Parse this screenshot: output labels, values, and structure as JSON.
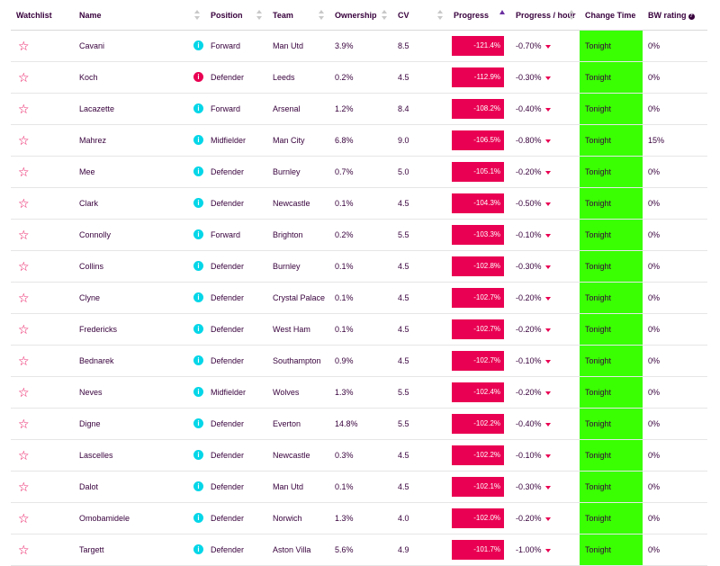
{
  "headers": {
    "watchlist": "Watchlist",
    "name": "Name",
    "position": "Position",
    "team": "Team",
    "ownership": "Ownership",
    "cv": "CV",
    "progress": "Progress",
    "progress_hour": "Progress / hour",
    "change_time": "Change Time",
    "bw_rating": "BW rating",
    "bw_help": "?"
  },
  "icons": {
    "watchlist": "star-outline-icon",
    "info": "info-icon",
    "down": "triangle-down-icon"
  },
  "colors": {
    "accent": "#e90052",
    "info_cyan": "#04d6e8",
    "tonight_green": "#39ff02",
    "text": "#37003c"
  },
  "rows": [
    {
      "name": "Cavani",
      "info": "i",
      "info_color": "cyan",
      "position": "Forward",
      "team": "Man Utd",
      "ownership": "3.9%",
      "cv": "8.5",
      "progress": "-121.4%",
      "progress_hour": "-0.70%",
      "change_time": "Tonight",
      "bw_rating": "0%"
    },
    {
      "name": "Koch",
      "info": "i",
      "info_color": "red",
      "position": "Defender",
      "team": "Leeds",
      "ownership": "0.2%",
      "cv": "4.5",
      "progress": "-112.9%",
      "progress_hour": "-0.30%",
      "change_time": "Tonight",
      "bw_rating": "0%"
    },
    {
      "name": "Lacazette",
      "info": "i",
      "info_color": "cyan",
      "position": "Forward",
      "team": "Arsenal",
      "ownership": "1.2%",
      "cv": "8.4",
      "progress": "-108.2%",
      "progress_hour": "-0.40%",
      "change_time": "Tonight",
      "bw_rating": "0%"
    },
    {
      "name": "Mahrez",
      "info": "i",
      "info_color": "cyan",
      "position": "Midfielder",
      "team": "Man City",
      "ownership": "6.8%",
      "cv": "9.0",
      "progress": "-106.5%",
      "progress_hour": "-0.80%",
      "change_time": "Tonight",
      "bw_rating": "15%"
    },
    {
      "name": "Mee",
      "info": "i",
      "info_color": "cyan",
      "position": "Defender",
      "team": "Burnley",
      "ownership": "0.7%",
      "cv": "5.0",
      "progress": "-105.1%",
      "progress_hour": "-0.20%",
      "change_time": "Tonight",
      "bw_rating": "0%"
    },
    {
      "name": "Clark",
      "info": "i",
      "info_color": "cyan",
      "position": "Defender",
      "team": "Newcastle",
      "ownership": "0.1%",
      "cv": "4.5",
      "progress": "-104.3%",
      "progress_hour": "-0.50%",
      "change_time": "Tonight",
      "bw_rating": "0%"
    },
    {
      "name": "Connolly",
      "info": "i",
      "info_color": "cyan",
      "position": "Forward",
      "team": "Brighton",
      "ownership": "0.2%",
      "cv": "5.5",
      "progress": "-103.3%",
      "progress_hour": "-0.10%",
      "change_time": "Tonight",
      "bw_rating": "0%"
    },
    {
      "name": "Collins",
      "info": "i",
      "info_color": "cyan",
      "position": "Defender",
      "team": "Burnley",
      "ownership": "0.1%",
      "cv": "4.5",
      "progress": "-102.8%",
      "progress_hour": "-0.30%",
      "change_time": "Tonight",
      "bw_rating": "0%"
    },
    {
      "name": "Clyne",
      "info": "i",
      "info_color": "cyan",
      "position": "Defender",
      "team": "Crystal Palace",
      "ownership": "0.1%",
      "cv": "4.5",
      "progress": "-102.7%",
      "progress_hour": "-0.20%",
      "change_time": "Tonight",
      "bw_rating": "0%"
    },
    {
      "name": "Fredericks",
      "info": "i",
      "info_color": "cyan",
      "position": "Defender",
      "team": "West Ham",
      "ownership": "0.1%",
      "cv": "4.5",
      "progress": "-102.7%",
      "progress_hour": "-0.20%",
      "change_time": "Tonight",
      "bw_rating": "0%"
    },
    {
      "name": "Bednarek",
      "info": "i",
      "info_color": "cyan",
      "position": "Defender",
      "team": "Southampton",
      "ownership": "0.9%",
      "cv": "4.5",
      "progress": "-102.7%",
      "progress_hour": "-0.10%",
      "change_time": "Tonight",
      "bw_rating": "0%"
    },
    {
      "name": "Neves",
      "info": "i",
      "info_color": "cyan",
      "position": "Midfielder",
      "team": "Wolves",
      "ownership": "1.3%",
      "cv": "5.5",
      "progress": "-102.4%",
      "progress_hour": "-0.20%",
      "change_time": "Tonight",
      "bw_rating": "0%"
    },
    {
      "name": "Digne",
      "info": "i",
      "info_color": "cyan",
      "position": "Defender",
      "team": "Everton",
      "ownership": "14.8%",
      "cv": "5.5",
      "progress": "-102.2%",
      "progress_hour": "-0.40%",
      "change_time": "Tonight",
      "bw_rating": "0%"
    },
    {
      "name": "Lascelles",
      "info": "i",
      "info_color": "cyan",
      "position": "Defender",
      "team": "Newcastle",
      "ownership": "0.3%",
      "cv": "4.5",
      "progress": "-102.2%",
      "progress_hour": "-0.10%",
      "change_time": "Tonight",
      "bw_rating": "0%"
    },
    {
      "name": "Dalot",
      "info": "i",
      "info_color": "cyan",
      "position": "Defender",
      "team": "Man Utd",
      "ownership": "0.1%",
      "cv": "4.5",
      "progress": "-102.1%",
      "progress_hour": "-0.30%",
      "change_time": "Tonight",
      "bw_rating": "0%"
    },
    {
      "name": "Omobamidele",
      "info": "i",
      "info_color": "cyan",
      "position": "Defender",
      "team": "Norwich",
      "ownership": "1.3%",
      "cv": "4.0",
      "progress": "-102.0%",
      "progress_hour": "-0.20%",
      "change_time": "Tonight",
      "bw_rating": "0%"
    },
    {
      "name": "Targett",
      "info": "i",
      "info_color": "cyan",
      "position": "Defender",
      "team": "Aston Villa",
      "ownership": "5.6%",
      "cv": "4.9",
      "progress": "-101.7%",
      "progress_hour": "-1.00%",
      "change_time": "Tonight",
      "bw_rating": "0%"
    }
  ]
}
